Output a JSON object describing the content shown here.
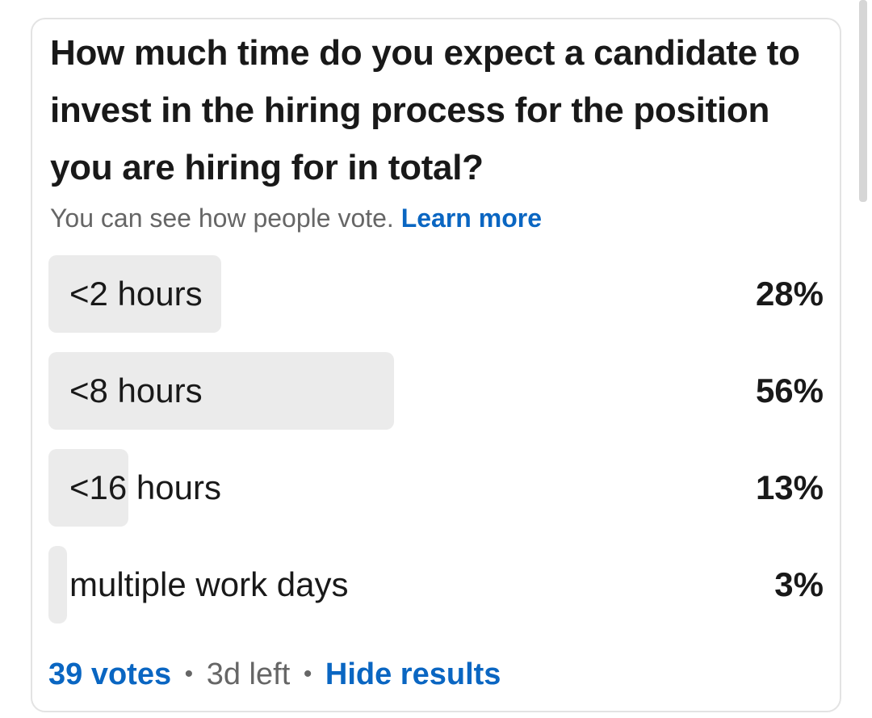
{
  "poll": {
    "question": "How much time do you expect a candidate to invest in the hiring process for the position you are hiring for in total?",
    "visibility_note": "You can see how people vote.",
    "learn_more_label": "Learn more",
    "options": [
      {
        "label": "<2 hours",
        "percent_label": "28%",
        "percent": 28
      },
      {
        "label": "<8 hours",
        "percent_label": "56%",
        "percent": 56
      },
      {
        "label": "<16 hours",
        "percent_label": "13%",
        "percent": 13
      },
      {
        "label": "multiple work days",
        "percent_label": "3%",
        "percent": 3
      }
    ],
    "footer": {
      "votes_label": "39 votes",
      "separator": "•",
      "time_left": "3d left",
      "hide_results_label": "Hide results"
    }
  },
  "colors": {
    "accent": "#0a66c2",
    "bar_fill": "#ebebeb",
    "text_primary": "#191919",
    "text_secondary": "#666666",
    "card_border": "#e3e3e3"
  }
}
